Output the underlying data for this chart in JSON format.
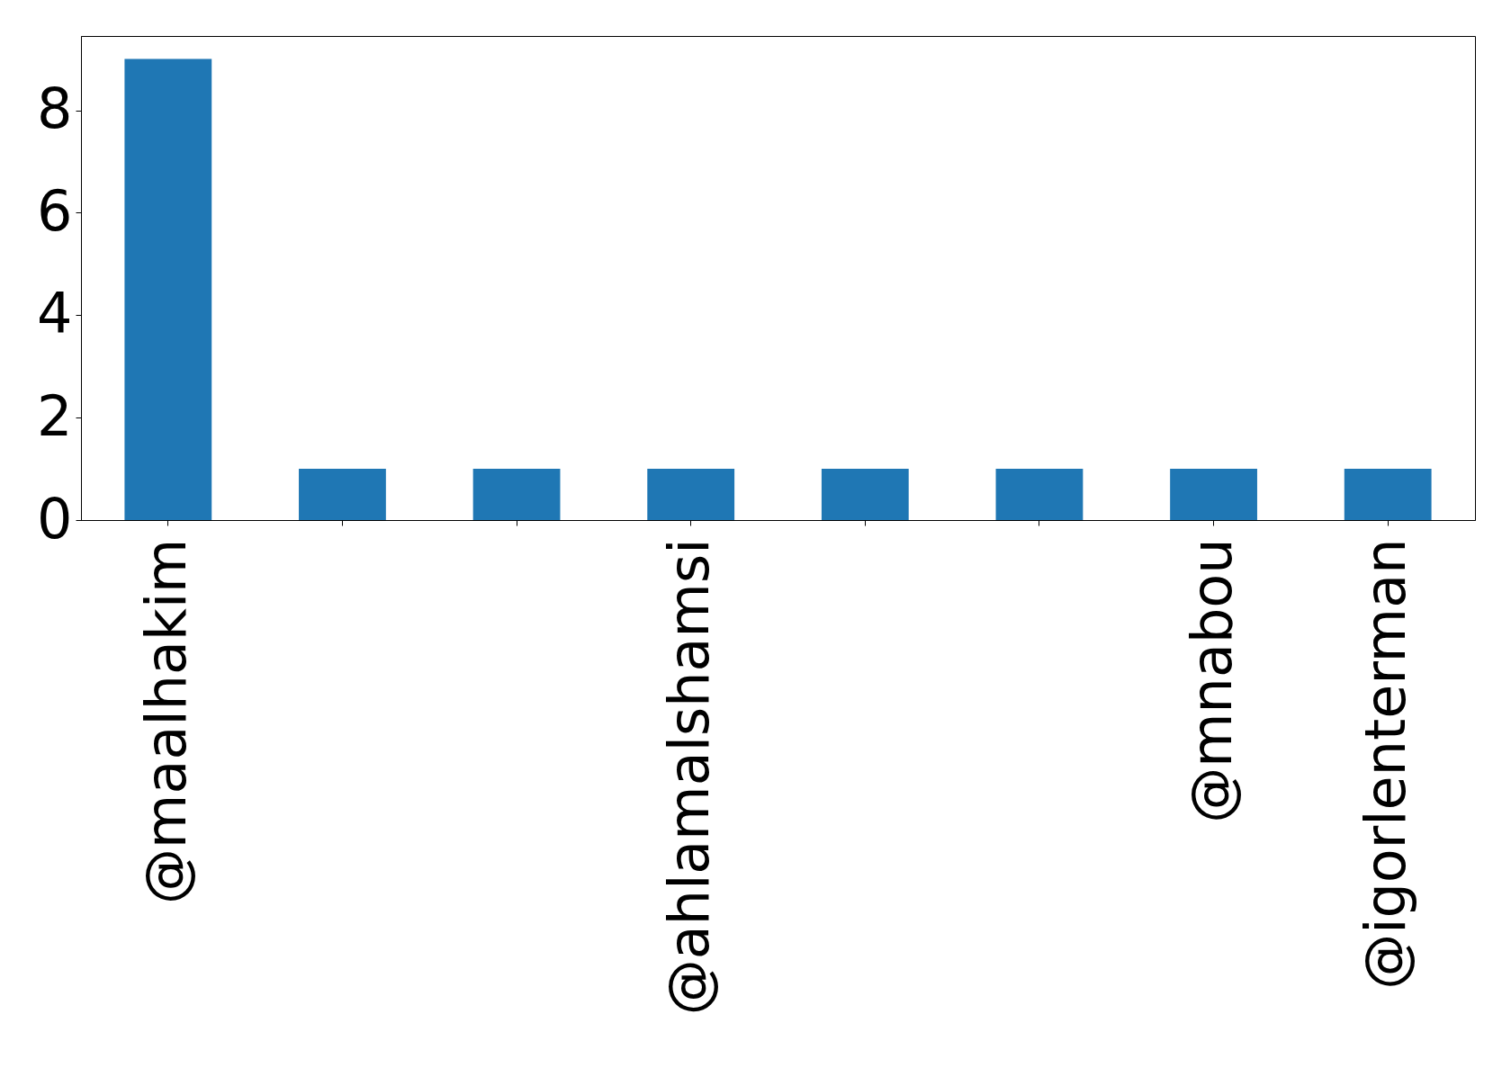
{
  "chart_data": {
    "type": "bar",
    "categories": [
      "@maalhakim",
      null,
      null,
      "@ahlamalshamsi",
      null,
      null,
      "@mnabou",
      "@igorlenterman"
    ],
    "values": [
      9,
      1,
      1,
      1,
      1,
      1,
      1,
      1
    ],
    "color": "#1f77b4",
    "ylim": [
      0,
      9.45
    ],
    "yticks": [
      0,
      2,
      4,
      6,
      8
    ]
  }
}
